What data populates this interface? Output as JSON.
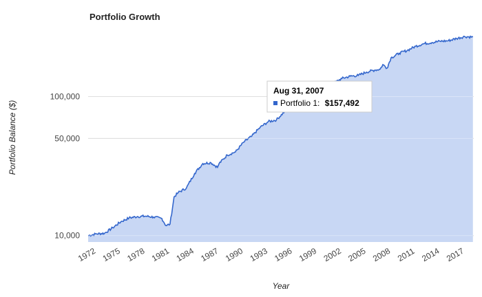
{
  "chart_data": {
    "type": "area",
    "title": "Portfolio Growth",
    "xlabel": "Year",
    "ylabel": "Portfolio Balance ($)",
    "y_scale": "log",
    "ylim": [
      9000,
      250000
    ],
    "xlim": [
      1972,
      2019.1
    ],
    "grid": true,
    "y_ticks": [
      {
        "value": 10000,
        "label": "10,000"
      },
      {
        "value": 50000,
        "label": "50,000"
      },
      {
        "value": 100000,
        "label": "100,000"
      }
    ],
    "x_ticks": [
      "1972",
      "1975",
      "1978",
      "1981",
      "1984",
      "1987",
      "1990",
      "1993",
      "1996",
      "1999",
      "2002",
      "2005",
      "2008",
      "2011",
      "2014",
      "2017"
    ],
    "series": [
      {
        "name": "Portfolio 1",
        "color": "#3366cc",
        "fill": "#c8d7f4",
        "x": [
          1972,
          1973,
          1974,
          1975,
          1976,
          1977,
          1978,
          1979,
          1980,
          1981,
          1981.5,
          1982,
          1982.5,
          1983,
          1984,
          1985,
          1986,
          1987,
          1987.8,
          1988,
          1989,
          1990,
          1991,
          1992,
          1993,
          1994,
          1995,
          1996,
          1997,
          1998,
          1999,
          2000,
          2001,
          2002,
          2003,
          2004,
          2005,
          2006,
          2007,
          2007.67,
          2008,
          2008.5,
          2009,
          2010,
          2011,
          2012,
          2013,
          2014,
          2015,
          2016,
          2017,
          2018,
          2019
        ],
        "values": [
          10000,
          10300,
          10400,
          11400,
          12600,
          13400,
          13700,
          13800,
          13600,
          13300,
          11800,
          12100,
          19000,
          20400,
          22000,
          28000,
          33000,
          33500,
          31000,
          33000,
          38000,
          40000,
          47000,
          52000,
          60000,
          66000,
          68000,
          78000,
          85000,
          93000,
          100000,
          110000,
          118000,
          125000,
          135000,
          140000,
          142000,
          150000,
          155000,
          157492,
          170000,
          160000,
          190000,
          205000,
          215000,
          230000,
          240000,
          245000,
          250000,
          252000,
          262000,
          270000,
          268000
        ]
      }
    ],
    "tooltip": {
      "date": "Aug 31, 2007",
      "series_label": "Portfolio 1:",
      "value_label": "$157,492"
    }
  }
}
